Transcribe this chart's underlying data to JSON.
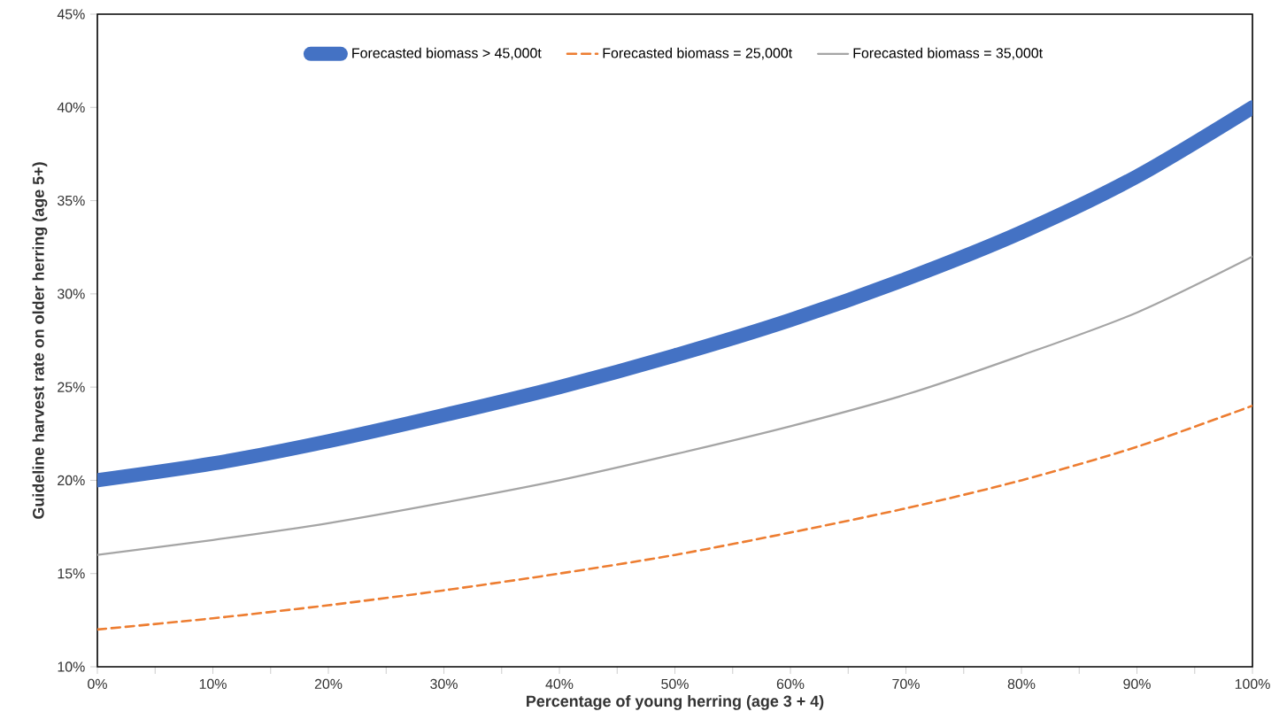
{
  "chart_data": {
    "type": "line",
    "xlabel": "Percentage of young herring (age 3 + 4)",
    "ylabel": "Guideline harvest rate on older herring (age 5+)",
    "x": [
      0,
      10,
      20,
      30,
      40,
      50,
      60,
      70,
      80,
      90,
      100
    ],
    "series": [
      {
        "name": "Forecasted biomass > 45,000t",
        "color": "#4472c4",
        "line_style": "solid",
        "values": [
          20.0,
          20.9,
          22.1,
          23.5,
          25.0,
          26.7,
          28.6,
          30.8,
          33.3,
          36.3,
          40.0
        ]
      },
      {
        "name": "Forecasted biomass = 25,000t",
        "color": "#ed7d31",
        "line_style": "dashed",
        "values": [
          12.0,
          12.6,
          13.3,
          14.1,
          15.0,
          16.0,
          17.2,
          18.5,
          20.0,
          21.8,
          24.0
        ]
      },
      {
        "name": "Forecasted biomass = 35,000t",
        "color": "#a5a5a5",
        "line_style": "solid",
        "values": [
          16.0,
          16.8,
          17.7,
          18.8,
          20.0,
          21.4,
          22.9,
          24.6,
          26.7,
          29.0,
          32.0
        ]
      }
    ],
    "xlim": [
      0,
      100
    ],
    "xticks": [
      {
        "value": 0,
        "label": "0%"
      },
      {
        "value": 5,
        "label": null
      },
      {
        "value": 10,
        "label": "10%"
      },
      {
        "value": 15,
        "label": null
      },
      {
        "value": 20,
        "label": "20%"
      },
      {
        "value": 25,
        "label": null
      },
      {
        "value": 30,
        "label": "30%"
      },
      {
        "value": 35,
        "label": null
      },
      {
        "value": 40,
        "label": "40%"
      },
      {
        "value": 45,
        "label": null
      },
      {
        "value": 50,
        "label": "50%"
      },
      {
        "value": 55,
        "label": null
      },
      {
        "value": 60,
        "label": "60%"
      },
      {
        "value": 65,
        "label": null
      },
      {
        "value": 70,
        "label": "70%"
      },
      {
        "value": 75,
        "label": null
      },
      {
        "value": 80,
        "label": "80%"
      },
      {
        "value": 85,
        "label": null
      },
      {
        "value": 90,
        "label": "90%"
      },
      {
        "value": 95,
        "label": null
      },
      {
        "value": 100,
        "label": "100%"
      }
    ],
    "ylim": [
      10,
      45
    ],
    "yticks": [
      {
        "value": 10,
        "label": "10%"
      },
      {
        "value": 15,
        "label": "15%"
      },
      {
        "value": 20,
        "label": "20%"
      },
      {
        "value": 25,
        "label": "25%"
      },
      {
        "value": 30,
        "label": "30%"
      },
      {
        "value": 35,
        "label": "35%"
      },
      {
        "value": 40,
        "label": "40%"
      },
      {
        "value": 45,
        "label": "45%"
      }
    ],
    "grid": false,
    "legend": "top",
    "marker": "none"
  }
}
